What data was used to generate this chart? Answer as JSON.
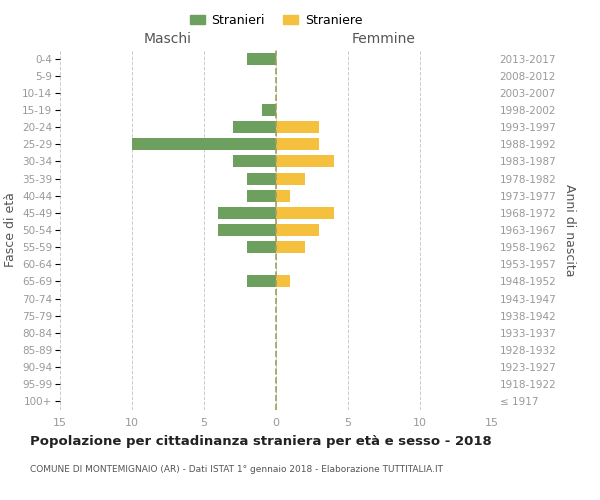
{
  "age_groups": [
    "100+",
    "95-99",
    "90-94",
    "85-89",
    "80-84",
    "75-79",
    "70-74",
    "65-69",
    "60-64",
    "55-59",
    "50-54",
    "45-49",
    "40-44",
    "35-39",
    "30-34",
    "25-29",
    "20-24",
    "15-19",
    "10-14",
    "5-9",
    "0-4"
  ],
  "birth_years": [
    "≤ 1917",
    "1918-1922",
    "1923-1927",
    "1928-1932",
    "1933-1937",
    "1938-1942",
    "1943-1947",
    "1948-1952",
    "1953-1957",
    "1958-1962",
    "1963-1967",
    "1968-1972",
    "1973-1977",
    "1978-1982",
    "1983-1987",
    "1988-1992",
    "1993-1997",
    "1998-2002",
    "2003-2007",
    "2008-2012",
    "2013-2017"
  ],
  "males": [
    0,
    0,
    0,
    0,
    0,
    0,
    0,
    2,
    0,
    2,
    4,
    4,
    2,
    2,
    3,
    10,
    3,
    1,
    0,
    0,
    2
  ],
  "females": [
    0,
    0,
    0,
    0,
    0,
    0,
    0,
    1,
    0,
    2,
    3,
    4,
    1,
    2,
    4,
    3,
    3,
    0,
    0,
    0,
    0
  ],
  "male_color": "#6d9f5e",
  "female_color": "#f5c03e",
  "title": "Popolazione per cittadinanza straniera per età e sesso - 2018",
  "subtitle": "COMUNE DI MONTEMIGNAIO (AR) - Dati ISTAT 1° gennaio 2018 - Elaborazione TUTTITALIA.IT",
  "xlabel_left": "Maschi",
  "xlabel_right": "Femmine",
  "ylabel_left": "Fasce di età",
  "ylabel_right": "Anni di nascita",
  "legend_male": "Stranieri",
  "legend_female": "Straniere",
  "xlim": 15,
  "bg_color": "#ffffff",
  "grid_color": "#cccccc",
  "tick_color": "#999999",
  "center_line_color": "#a0a060"
}
